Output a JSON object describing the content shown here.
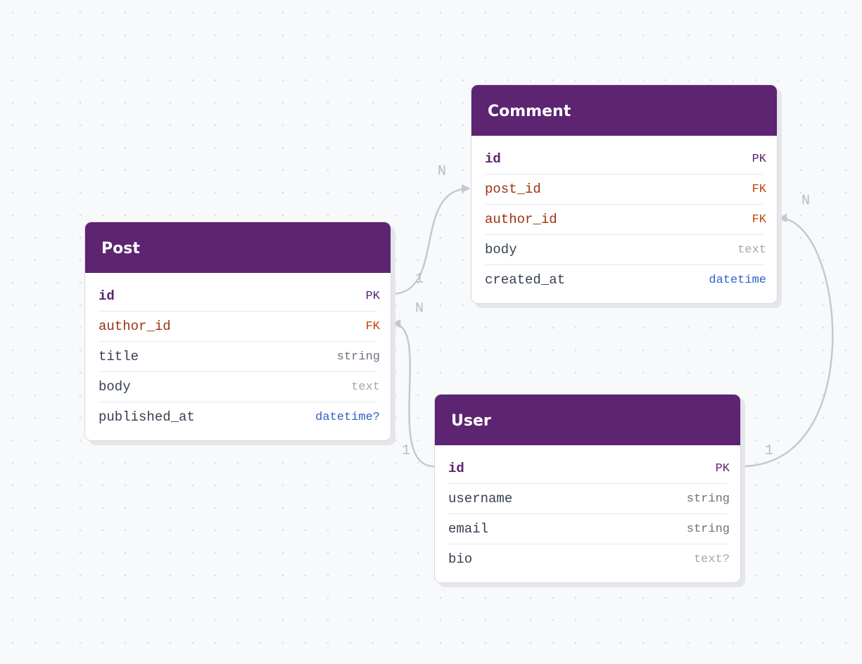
{
  "tables": [
    {
      "name": "Post",
      "fields": [
        {
          "name": "id",
          "type": "PK"
        },
        {
          "name": "author_id",
          "type": "FK"
        },
        {
          "name": "title",
          "type": "string"
        },
        {
          "name": "body",
          "type": "text"
        },
        {
          "name": "published_at",
          "type": "datetime?"
        }
      ]
    },
    {
      "name": "Comment",
      "fields": [
        {
          "name": "id",
          "type": "PK"
        },
        {
          "name": "post_id",
          "type": "FK"
        },
        {
          "name": "author_id",
          "type": "FK"
        },
        {
          "name": "body",
          "type": "text"
        },
        {
          "name": "created_at",
          "type": "datetime"
        }
      ]
    },
    {
      "name": "User",
      "fields": [
        {
          "name": "id",
          "type": "PK"
        },
        {
          "name": "username",
          "type": "string"
        },
        {
          "name": "email",
          "type": "string"
        },
        {
          "name": "bio",
          "type": "text?"
        }
      ]
    }
  ],
  "relations": [
    {
      "from_label": "1",
      "to_label": "N"
    },
    {
      "from_label": "1",
      "to_label": "N"
    },
    {
      "from_label": "1",
      "to_label": "N"
    }
  ]
}
